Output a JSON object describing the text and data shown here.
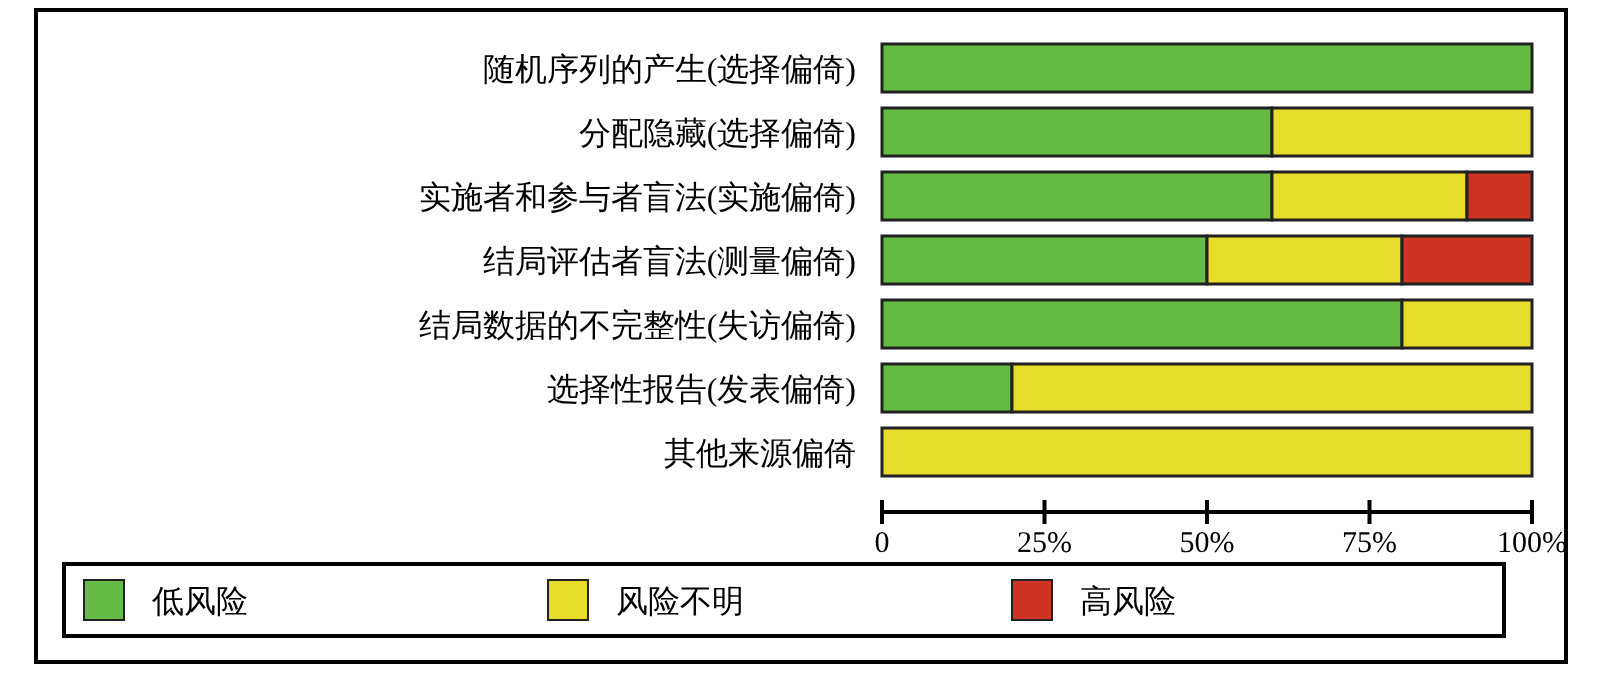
{
  "chart_data": {
    "type": "bar",
    "orientation": "horizontal",
    "stacked": true,
    "categories": [
      "随机序列的产生(选择偏倚)",
      "分配隐藏(选择偏倚)",
      "实施者和参与者盲法(实施偏倚)",
      "结局评估者盲法(测量偏倚)",
      "结局数据的不完整性(失访偏倚)",
      "选择性报告(发表偏倚)",
      "其他来源偏倚"
    ],
    "series": [
      {
        "name": "低风险",
        "color": "#66bb44",
        "values": [
          100,
          60,
          60,
          50,
          80,
          20,
          0
        ]
      },
      {
        "name": "风险不明",
        "color": "#e8dc2a",
        "values": [
          0,
          40,
          30,
          30,
          20,
          80,
          100
        ]
      },
      {
        "name": "高风险",
        "color": "#cc3322",
        "values": [
          0,
          0,
          10,
          20,
          0,
          0,
          0
        ]
      }
    ],
    "xlim": [
      0,
      100
    ],
    "xticks": [
      0,
      {
        "value": 25,
        "label": "25%"
      },
      {
        "value": 50,
        "label": "50%"
      },
      {
        "value": 75,
        "label": "75%"
      },
      {
        "value": 100,
        "label": "100%"
      }
    ],
    "grid": false,
    "legend": "bottom"
  }
}
